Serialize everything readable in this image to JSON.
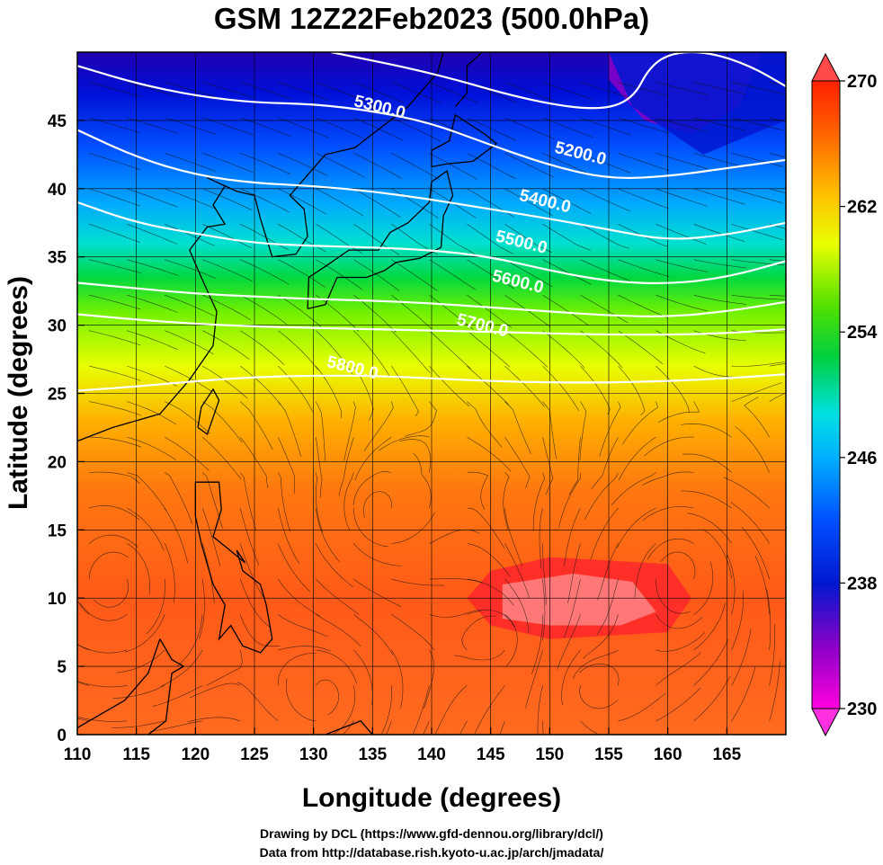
{
  "figure": {
    "title": "GSM 12Z22Feb2023 (500.0hPa)",
    "xlabel": "Longitude (degrees)",
    "ylabel": "Latitude  (degrees)",
    "credit_line1": "Drawing by DCL (https://www.gfd-dennou.org/library/dcl/)",
    "credit_line2": "Data from http://database.rish.kyoto-u.ac.jp/arch/jmadata/"
  },
  "chart_data": {
    "type": "heatmap",
    "description_fields": "temperature shading (K) with geopotential height contours (m) and wind streamlines",
    "xlim": [
      110,
      170
    ],
    "ylim": [
      0,
      50
    ],
    "xticks": [
      "110",
      "115",
      "120",
      "125",
      "130",
      "135",
      "140",
      "145",
      "150",
      "155",
      "160",
      "165"
    ],
    "yticks": [
      "0",
      "5",
      "10",
      "15",
      "20",
      "25",
      "30",
      "35",
      "40",
      "45"
    ],
    "colorbar": {
      "min": 230,
      "max": 270,
      "tick_labels": [
        "230",
        "238",
        "246",
        "254",
        "262",
        "270"
      ],
      "colors": [
        "#ff00dd",
        "#8a00c8",
        "#0018d0",
        "#0088ff",
        "#00e0e0",
        "#00d060",
        "#40e000",
        "#e8ff00",
        "#ffc000",
        "#ff6000",
        "#ff2000"
      ]
    },
    "contours": [
      {
        "label": "5200.0",
        "label_lon": 152.5,
        "label_lat": 42.2,
        "points": [
          [
            131.5,
            50
          ],
          [
            140,
            48.5
          ],
          [
            148,
            46.5
          ],
          [
            154,
            45.7
          ],
          [
            157,
            46.5
          ],
          [
            158.5,
            49
          ],
          [
            160.5,
            50
          ],
          [
            163.5,
            50
          ],
          [
            167,
            49
          ],
          [
            170,
            47.5
          ]
        ]
      },
      {
        "label": "5300.0",
        "label_lon": 135.5,
        "label_lat": 45.6,
        "points": [
          [
            110,
            49
          ],
          [
            115,
            47.7
          ],
          [
            120,
            46.8
          ],
          [
            125,
            46.3
          ],
          [
            130,
            46.2
          ],
          [
            135,
            45.7
          ],
          [
            140,
            44.8
          ],
          [
            145,
            43.2
          ],
          [
            150,
            41.7
          ],
          [
            155,
            40.7
          ],
          [
            160,
            40.9
          ],
          [
            165,
            41.5
          ],
          [
            170,
            42.1
          ]
        ]
      },
      {
        "label": "5400.0",
        "label_lon": 149.5,
        "label_lat": 38.7,
        "points": [
          [
            110,
            44.3
          ],
          [
            115,
            42.3
          ],
          [
            120,
            41
          ],
          [
            125,
            40.4
          ],
          [
            130,
            40.2
          ],
          [
            135,
            39.8
          ],
          [
            140,
            39.2
          ],
          [
            145,
            38.5
          ],
          [
            150,
            37.8
          ],
          [
            155,
            37
          ],
          [
            160,
            36.2
          ],
          [
            165,
            36.6
          ],
          [
            170,
            37.5
          ]
        ]
      },
      {
        "label": "5500.0",
        "label_lon": 147.5,
        "label_lat": 35.7,
        "points": [
          [
            110,
            39
          ],
          [
            115,
            37.5
          ],
          [
            120,
            36.7
          ],
          [
            125,
            36
          ],
          [
            130,
            35.8
          ],
          [
            135,
            35.7
          ],
          [
            140,
            35.5
          ],
          [
            145,
            35
          ],
          [
            150,
            34
          ],
          [
            155,
            33.2
          ],
          [
            160,
            33
          ],
          [
            165,
            33.5
          ],
          [
            170,
            34.7
          ]
        ]
      },
      {
        "label": "5600.0",
        "label_lon": 147.2,
        "label_lat": 32.8,
        "points": [
          [
            110,
            33.1
          ],
          [
            115,
            32.7
          ],
          [
            120,
            32.3
          ],
          [
            125,
            32.1
          ],
          [
            130,
            31.9
          ],
          [
            135,
            31.8
          ],
          [
            140,
            31.6
          ],
          [
            145,
            31.3
          ],
          [
            150,
            31
          ],
          [
            155,
            30.7
          ],
          [
            160,
            30.6
          ],
          [
            165,
            31
          ],
          [
            170,
            31.7
          ]
        ]
      },
      {
        "label": "5700.0",
        "label_lon": 144.2,
        "label_lat": 29.6,
        "points": [
          [
            110,
            30.8
          ],
          [
            115,
            30.4
          ],
          [
            120,
            30.1
          ],
          [
            125,
            29.9
          ],
          [
            130,
            29.8
          ],
          [
            135,
            29.7
          ],
          [
            140,
            29.6
          ],
          [
            145,
            29.5
          ],
          [
            150,
            29.4
          ],
          [
            155,
            29.3
          ],
          [
            160,
            29.3
          ],
          [
            165,
            29.4
          ],
          [
            170,
            29.7
          ]
        ]
      },
      {
        "label": "5800.0",
        "label_lon": 133.2,
        "label_lat": 26.5,
        "points": [
          [
            110,
            25.2
          ],
          [
            115,
            25.5
          ],
          [
            120,
            25.9
          ],
          [
            125,
            26.2
          ],
          [
            130,
            26.3
          ],
          [
            135,
            26.3
          ],
          [
            140,
            26.1
          ],
          [
            145,
            25.9
          ],
          [
            150,
            25.8
          ],
          [
            155,
            25.8
          ],
          [
            160,
            25.9
          ],
          [
            165,
            26.1
          ],
          [
            170,
            26.4
          ]
        ]
      }
    ],
    "temperature_bands": [
      {
        "value": 232,
        "points": [
          [
            155,
            50
          ],
          [
            168,
            50
          ],
          [
            166,
            46
          ],
          [
            162,
            44
          ],
          [
            158,
            45
          ],
          [
            155,
            48
          ]
        ]
      },
      {
        "value": 236,
        "points": [
          [
            127,
            50
          ],
          [
            155,
            50
          ],
          [
            157,
            46
          ],
          [
            163,
            42.5
          ],
          [
            170,
            45
          ],
          [
            170,
            50
          ]
        ]
      },
      {
        "value": 267,
        "points": [
          [
            145,
            12
          ],
          [
            150,
            13
          ],
          [
            160,
            12.5
          ],
          [
            162,
            10
          ],
          [
            160,
            7.5
          ],
          [
            150,
            7
          ],
          [
            145,
            8
          ],
          [
            143,
            10
          ]
        ]
      },
      {
        "value": 268,
        "points": [
          [
            146,
            11
          ],
          [
            152,
            11.8
          ],
          [
            157,
            11.2
          ],
          [
            159,
            9
          ],
          [
            156,
            8
          ],
          [
            150,
            8
          ],
          [
            146,
            8.5
          ]
        ]
      }
    ]
  }
}
